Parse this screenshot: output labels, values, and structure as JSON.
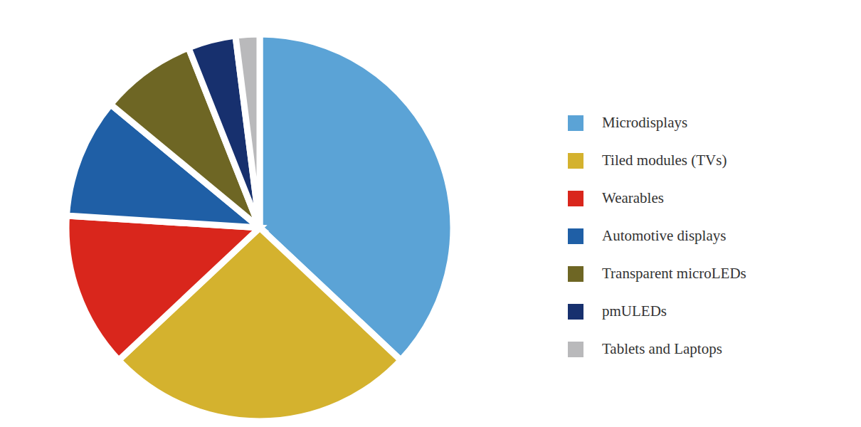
{
  "chart_data": {
    "type": "pie",
    "categories": [
      "Microdisplays",
      "Tiled modules (TVs)",
      "Wearables",
      "Automotive displays",
      "Transparent microLEDs",
      "pmULEDs",
      "Tablets and Laptops"
    ],
    "values": [
      37,
      26,
      13,
      10,
      8,
      4,
      2
    ],
    "colors": [
      "#5ba3d6",
      "#d4b22e",
      "#d9261c",
      "#1f5fa6",
      "#6e6624",
      "#17306e",
      "#b9b9bb"
    ],
    "legend": "right"
  }
}
